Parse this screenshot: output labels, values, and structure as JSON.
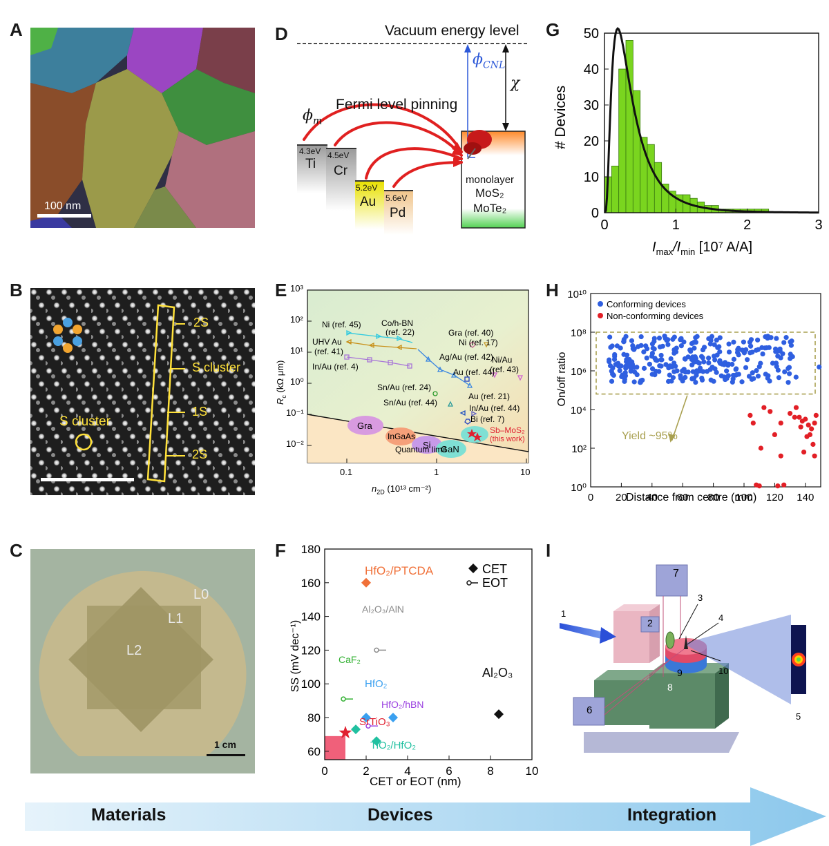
{
  "panels": {
    "A": {
      "letter": "A",
      "scalebar": "100 nm"
    },
    "B": {
      "letter": "B",
      "labels": [
        "2S",
        "S cluster",
        "1S",
        "2S"
      ],
      "circle_label": "S cluster"
    },
    "C": {
      "letter": "C",
      "layers": [
        "L0",
        "L1",
        "L2"
      ],
      "scalebar": "1 cm"
    },
    "D": {
      "letter": "D",
      "vacuum": "Vacuum energy level",
      "phi_cnl": "ϕ",
      "phi_cnl_sub": "CNL",
      "chi": "χ",
      "pinning": "Fermi level pinning",
      "phi_m": "ϕ",
      "phi_m_sub": "m",
      "metals": [
        {
          "wf": "4.3eV",
          "name": "Ti"
        },
        {
          "wf": "4.5eV",
          "name": "Cr"
        },
        {
          "wf": "5.2eV",
          "name": "Au"
        },
        {
          "wf": "5.6eV",
          "name": "Pd"
        }
      ],
      "semi": [
        "monolayer",
        "MoS₂",
        "MoTe₂"
      ]
    },
    "E": {
      "letter": "E",
      "ylabel": "R",
      "ylabel_sub": "c",
      "ylabel_unit": "(kΩ μm)",
      "xlabel": "n",
      "xlabel_sub": "2D",
      "xlabel_unit": "(10¹³ cm⁻²)",
      "yticks": [
        "10³",
        "10²",
        "10¹",
        "10⁰",
        "10⁻¹",
        "10⁻²"
      ],
      "xticks": [
        "0.1",
        "1",
        "10"
      ],
      "annotations": [
        "Ni (ref. 45)",
        "Co/h-BN",
        "(ref. 22)",
        "Gra (ref. 40)",
        "Ni (ref. 17)",
        "UHV Au",
        "(ref. 41)",
        "Ag/Au (ref. 42)",
        "In/Au (ref. 4)",
        "Au (ref. 44)",
        "Ni/Au",
        "(ref. 43)",
        "Sn/Au (ref. 24)",
        "Sn/Au (ref. 44)",
        "Au (ref. 21)",
        "In/Au (ref. 44)",
        "Bi (ref. 7)",
        "Sb–MoS₂",
        "(this work)",
        "Quantum limit"
      ],
      "materials": [
        "Gra",
        "InGaAs",
        "Si",
        "GaN"
      ]
    },
    "F": {
      "letter": "F",
      "ylabel": "SS (mV dec⁻¹)",
      "xlabel": "CET or EOT (nm)",
      "yticks": [
        "180",
        "160",
        "140",
        "120",
        "100",
        "80",
        "60"
      ],
      "xticks": [
        "0",
        "2",
        "4",
        "6",
        "8",
        "10"
      ],
      "legend": [
        "CET",
        "EOT"
      ],
      "labels": [
        "HfO₂/PTCDA",
        "Al₂O₃/AlN",
        "CaF₂",
        "HfO₂",
        "HfO₂/hBN",
        "SrTiO₃",
        "TiO₂/HfO₂",
        "Al₂O₃"
      ]
    },
    "G": {
      "letter": "G",
      "ylabel": "# Devices",
      "xlabel_main": "I",
      "xlabel_sub1": "max",
      "xlabel_sep": "/I",
      "xlabel_sub2": "min",
      "xlabel_unit": " [10⁷ A/A]",
      "yticks": [
        "0",
        "10",
        "20",
        "30",
        "40",
        "50"
      ],
      "xticks": [
        "0",
        "1",
        "2",
        "3"
      ]
    },
    "H": {
      "letter": "H",
      "ylabel": "On/off ratio",
      "xlabel": "Distance from centre (mm)",
      "yticks": [
        "10¹⁰",
        "10⁸",
        "10⁶",
        "10⁴",
        "10²",
        "10⁰"
      ],
      "xticks": [
        "0",
        "20",
        "40",
        "60",
        "80",
        "100",
        "120",
        "140"
      ],
      "legend": [
        "Conforming devices",
        "Non-conforming devices"
      ],
      "yield": "Yield ~95%"
    },
    "I": {
      "letter": "I",
      "numbers": [
        "1",
        "2",
        "3",
        "4",
        "5",
        "6",
        "7",
        "8",
        "9",
        "10"
      ]
    }
  },
  "colors": {
    "blue_dot": "#2f5fe0",
    "red_dot": "#e21f26",
    "green_bar": "#7ad51f",
    "arrow": "#a9d6f2"
  },
  "stages": [
    "Materials",
    "Devices",
    "Integration"
  ],
  "chart_data": [
    {
      "type": "bar",
      "panel": "G",
      "ylabel": "# Devices",
      "xlabel": "Imax/Imin [10^7 A/A]",
      "xlim": [
        0,
        3
      ],
      "ylim": [
        0,
        50
      ],
      "bin_edges": [
        0,
        0.1,
        0.2,
        0.3,
        0.4,
        0.5,
        0.6,
        0.7,
        0.8,
        0.9,
        1.0,
        1.1,
        1.2,
        1.3,
        1.4,
        1.5,
        1.6,
        1.7,
        1.8,
        1.9,
        2.0,
        2.1,
        2.2,
        2.3
      ],
      "values": [
        10,
        13,
        40,
        48,
        34,
        21,
        19,
        14,
        8,
        6,
        5,
        5,
        4,
        3,
        2,
        2,
        1,
        1,
        1,
        1,
        1,
        1,
        1
      ]
    },
    {
      "type": "scatter",
      "panel": "F",
      "ylabel": "SS (mV dec^-1)",
      "xlabel": "CET or EOT (nm)",
      "xlim": [
        0,
        10
      ],
      "ylim": [
        55,
        180
      ],
      "series": [
        {
          "name": "CET",
          "points": [
            {
              "label": "HfO₂/PTCDA",
              "x": 2,
              "y": 160
            },
            {
              "label": "HfO₂",
              "x": 2,
              "y": 80
            },
            {
              "label": "HfO₂",
              "x": 3.3,
              "y": 80
            },
            {
              "label": "TiO₂/HfO₂",
              "x": 1.5,
              "y": 73
            },
            {
              "label": "TiO₂/HfO₂",
              "x": 2.5,
              "y": 66
            },
            {
              "label": "Al₂O₃",
              "x": 8.4,
              "y": 82
            },
            {
              "label": "SrTiO₃",
              "x": 1,
              "y": 71
            }
          ]
        },
        {
          "name": "EOT",
          "points": [
            {
              "label": "Al₂O₃/AlN",
              "x": 2.5,
              "y": 120
            },
            {
              "label": "CaF₂",
              "x": 0.9,
              "y": 91
            },
            {
              "label": "HfO₂/hBN",
              "x": 2.1,
              "y": 75
            }
          ]
        }
      ]
    }
  ]
}
